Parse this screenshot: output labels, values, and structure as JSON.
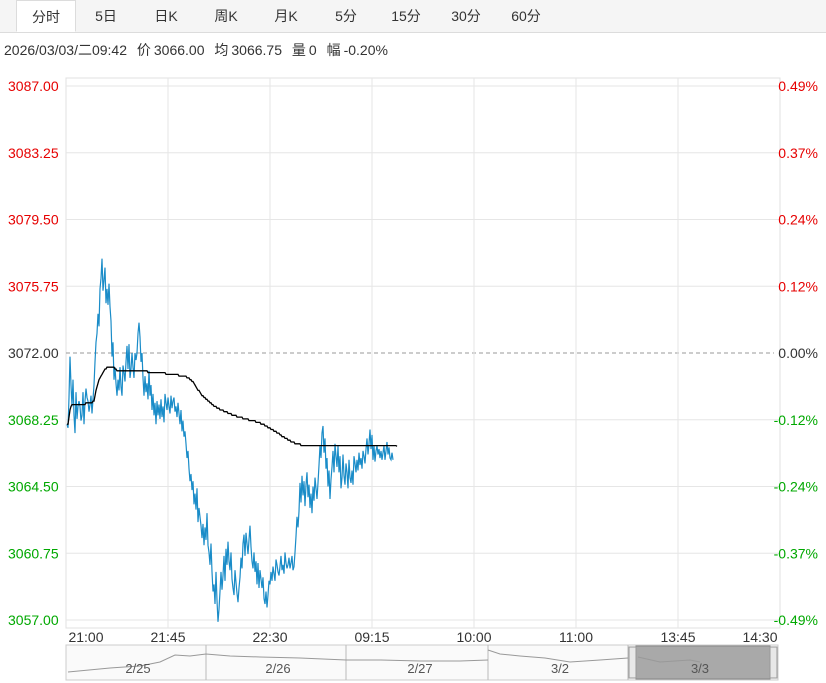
{
  "tabs": [
    "分时",
    "5日",
    "日K",
    "周K",
    "月K",
    "5分",
    "15分",
    "30分",
    "60分"
  ],
  "active_tab": 0,
  "info": {
    "datetime": "2026/03/03/二09:42",
    "price_label": "价",
    "price": "3066.00",
    "avg_label": "均",
    "avg": "3066.75",
    "vol_label": "量",
    "vol": "0",
    "chg_label": "幅",
    "chg": "-0.20%"
  },
  "colors": {
    "up": "#e60000",
    "down": "#00a800",
    "price_line": "#1a8cc8",
    "avg_line": "#000000",
    "grid": "#e6e6e6"
  },
  "chart_data": {
    "type": "line",
    "y_ticks_left": [
      "3087.00",
      "3083.25",
      "3079.50",
      "3075.75",
      "3072.00",
      "3068.25",
      "3064.50",
      "3060.75",
      "3057.00"
    ],
    "y_ticks_right": [
      "0.49%",
      "0.37%",
      "0.24%",
      "0.12%",
      "0.00%",
      "-0.12%",
      "-0.24%",
      "-0.37%",
      "-0.49%"
    ],
    "x_ticks": [
      "21:00",
      "21:45",
      "22:30",
      "09:15",
      "10:00",
      "11:00",
      "13:45",
      "14:30"
    ],
    "ylim": [
      3057.0,
      3087.0
    ],
    "baseline": 3072.0,
    "x": [
      0,
      1,
      2,
      3,
      4,
      5,
      6,
      7,
      8,
      9,
      10,
      11,
      12,
      13,
      14,
      15,
      16,
      17,
      18,
      19,
      20,
      21,
      22,
      23,
      24,
      25,
      26,
      27,
      28,
      29,
      30,
      31,
      32,
      33,
      34,
      35,
      36,
      37,
      38,
      39,
      40,
      41,
      42,
      43,
      44,
      45,
      46,
      47,
      48,
      49,
      50,
      51,
      52,
      53,
      54,
      55,
      56,
      57,
      58,
      59,
      60,
      61,
      62,
      63,
      64,
      65,
      66,
      67,
      68,
      69,
      70,
      71,
      72,
      73,
      74,
      75,
      76,
      77,
      78,
      79,
      80,
      81,
      82,
      83,
      84,
      85,
      86,
      87,
      88,
      89,
      90,
      91,
      92,
      93,
      94,
      95,
      96,
      97,
      98,
      99,
      100,
      101,
      102,
      103,
      104,
      105,
      106,
      107,
      108,
      109,
      110,
      111,
      112,
      113,
      114,
      115,
      116,
      117,
      118,
      119,
      120,
      121,
      122,
      123,
      124,
      125,
      126,
      127,
      128,
      129,
      130,
      131,
      132,
      133,
      134,
      135,
      136,
      137,
      138,
      139,
      140,
      141,
      142,
      143,
      144,
      145,
      146,
      147,
      148,
      149,
      150,
      151,
      152,
      153,
      154,
      155,
      156,
      157,
      158,
      159,
      160,
      161,
      162,
      163,
      164,
      165,
      166,
      167,
      168,
      169,
      170,
      171,
      172,
      173,
      174,
      175,
      176,
      177,
      178,
      179,
      180,
      181,
      182,
      183,
      184,
      185,
      186,
      187,
      188,
      189,
      190,
      191,
      192,
      193,
      194,
      195,
      196,
      197,
      198,
      199,
      200,
      201,
      202,
      203,
      204,
      205,
      206,
      207,
      208,
      209,
      210,
      211,
      212,
      213,
      214,
      215,
      216,
      217,
      218,
      219,
      220,
      221,
      222,
      223,
      224,
      225,
      226,
      227,
      228,
      229,
      230,
      231,
      232,
      233,
      234,
      235,
      236,
      237,
      238,
      239,
      240,
      241,
      242,
      243,
      244,
      245,
      246,
      247,
      248,
      249,
      250,
      251,
      252,
      253,
      254,
      255,
      256,
      257,
      258,
      259,
      260,
      261,
      262,
      263,
      264,
      265,
      266,
      267,
      268,
      269,
      270,
      271,
      272,
      273,
      274,
      275,
      276,
      277,
      278,
      279,
      280,
      281,
      282,
      283,
      284,
      285,
      286,
      287,
      288,
      289,
      290,
      291,
      292,
      293,
      294,
      295,
      296,
      297,
      298,
      299,
      300,
      301,
      302,
      303,
      304,
      305,
      306,
      307,
      308,
      309,
      310,
      311,
      312,
      313,
      314,
      315,
      316,
      317,
      318,
      319,
      320,
      321,
      322,
      323,
      324,
      325,
      326,
      327,
      328,
      329,
      330,
      331,
      332,
      333,
      334
    ],
    "price": [
      3068.0,
      3067.8,
      3069.5,
      3071.8,
      3070.2,
      3069.0,
      3070.5,
      3068.5,
      3067.5,
      3069.8,
      3068.3,
      3069.0,
      3069.3,
      3069.0,
      3068.2,
      3068.5,
      3069.8,
      3068.0,
      3069.3,
      3070.0,
      3069.5,
      3069.3,
      3068.7,
      3069.1,
      3069.6,
      3068.6,
      3069.4,
      3070.2,
      3071.5,
      3072.6,
      3073.1,
      3074.2,
      3073.5,
      3075.6,
      3076.2,
      3077.3,
      3075.5,
      3076.1,
      3076.8,
      3074.8,
      3075.6,
      3074.7,
      3075.9,
      3074.6,
      3073.8,
      3071.8,
      3072.6,
      3070.5,
      3071.2,
      3070.3,
      3069.6,
      3070.5,
      3069.9,
      3071.2,
      3070.1,
      3069.6,
      3071.3,
      3070.9,
      3070.4,
      3071.5,
      3072.4,
      3071.1,
      3072.5,
      3070.6,
      3071.1,
      3072.0,
      3071.2,
      3070.6,
      3072.0,
      3071.6,
      3072.0,
      3073.1,
      3073.7,
      3072.9,
      3071.5,
      3072.0,
      3070.6,
      3069.6,
      3070.7,
      3069.8,
      3070.3,
      3069.4,
      3071.0,
      3069.6,
      3070.2,
      3068.8,
      3069.7,
      3068.5,
      3069.2,
      3068.0,
      3069.3,
      3068.5,
      3069.1,
      3068.3,
      3069.4,
      3068.4,
      3069.0,
      3068.1,
      3069.7,
      3069.2,
      3068.8,
      3069.5,
      3069.0,
      3068.6,
      3069.6,
      3068.9,
      3069.3,
      3069.5,
      3068.7,
      3069.0,
      3068.4,
      3069.2,
      3068.6,
      3068.0,
      3068.8,
      3067.6,
      3068.2,
      3067.3,
      3067.6,
      3066.9,
      3066.1,
      3066.5,
      3065.5,
      3064.8,
      3065.2,
      3064.3,
      3064.8,
      3063.5,
      3064.1,
      3063.2,
      3064.4,
      3062.5,
      3063.3,
      3062.8,
      3062.3,
      3061.6,
      3062.4,
      3061.2,
      3062.2,
      3061.5,
      3063.0,
      3061.2,
      3060.8,
      3060.1,
      3061.3,
      3059.7,
      3058.6,
      3059.0,
      3057.9,
      3059.7,
      3058.1,
      3056.9,
      3057.6,
      3058.6,
      3059.7,
      3058.7,
      3059.5,
      3060.6,
      3059.2,
      3061.0,
      3060.1,
      3061.4,
      3060.3,
      3059.8,
      3060.8,
      3059.3,
      3058.8,
      3058.4,
      3059.8,
      3059.1,
      3058.5,
      3058.0,
      3058.8,
      3059.4,
      3060.5,
      3059.9,
      3061.3,
      3061.8,
      3060.6,
      3061.9,
      3061.3,
      3060.7,
      3061.5,
      3062.3,
      3061.1,
      3060.3,
      3059.9,
      3060.8,
      3059.7,
      3060.3,
      3059.0,
      3060.2,
      3058.8,
      3059.8,
      3059.3,
      3058.8,
      3059.4,
      3058.2,
      3057.9,
      3058.6,
      3057.7,
      3058.4,
      3059.2,
      3059.0,
      3059.7,
      3059.2,
      3060.0,
      3059.6,
      3059.2,
      3060.4,
      3060.1,
      3059.7,
      3059.5,
      3060.0,
      3060.6,
      3059.8,
      3060.1,
      3059.6,
      3060.8,
      3060.2,
      3059.9,
      3060.1,
      3060.5,
      3059.9,
      3060.2,
      3060.6,
      3059.8,
      3060.0,
      3060.8,
      3061.7,
      3062.8,
      3062.2,
      3063.1,
      3064.7,
      3063.6,
      3065.1,
      3064.0,
      3064.8,
      3063.4,
      3064.6,
      3065.3,
      3063.9,
      3064.6,
      3063.3,
      3064.1,
      3063.0,
      3064.5,
      3063.7,
      3065.0,
      3064.4,
      3063.8,
      3064.7,
      3065.7,
      3066.8,
      3066.1,
      3067.5,
      3067.9,
      3066.4,
      3067.2,
      3065.5,
      3066.1,
      3064.5,
      3065.4,
      3063.8,
      3064.9,
      3065.6,
      3066.5,
      3065.3,
      3066.9,
      3066.2,
      3065.6,
      3066.8,
      3065.3,
      3066.2,
      3064.4,
      3065.0,
      3066.3,
      3065.1,
      3064.6,
      3065.8,
      3065.3,
      3064.4,
      3066.0,
      3065.0,
      3064.7,
      3065.4,
      3064.6,
      3066.2,
      3065.8,
      3065.3,
      3066.0,
      3065.4,
      3066.4,
      3065.7,
      3066.1,
      3065.5,
      3066.5,
      3066.2,
      3065.8,
      3066.6,
      3067.2,
      3066.3,
      3066.9,
      3067.7,
      3066.6,
      3067.4,
      3066.0,
      3066.8,
      3065.9,
      3066.5,
      3066.8,
      3066.3,
      3066.6,
      3066.1,
      3066.5,
      3066.0,
      3066.4,
      3066.8,
      3066.0,
      3066.5,
      3067.0,
      3066.3,
      3066.7,
      3066.1,
      3066.0,
      3066.4,
      3066.0
    ],
    "avg": [
      3068.0,
      3068.0,
      3068.4,
      3068.8,
      3069.0,
      3069.1,
      3069.1,
      3069.1,
      3069.1,
      3069.1,
      3069.1,
      3069.1,
      3069.1,
      3069.1,
      3069.1,
      3069.1,
      3069.1,
      3069.1,
      3069.1,
      3069.2,
      3069.2,
      3069.2,
      3069.2,
      3069.2,
      3069.2,
      3069.2,
      3069.3,
      3069.3,
      3069.6,
      3069.9,
      3070.1,
      3070.3,
      3070.5,
      3070.6,
      3070.7,
      3070.8,
      3070.9,
      3071.0,
      3071.1,
      3071.1,
      3071.2,
      3071.2,
      3071.2,
      3071.2,
      3071.2,
      3071.2,
      3071.2,
      3071.2,
      3071.1,
      3071.1,
      3071.0,
      3071.0,
      3071.0,
      3071.0,
      3071.0,
      3071.0,
      3071.0,
      3071.0,
      3071.0,
      3071.0,
      3071.0,
      3071.0,
      3071.0,
      3071.0,
      3071.0,
      3071.0,
      3071.0,
      3071.0,
      3071.0,
      3071.0,
      3071.0,
      3071.0,
      3071.0,
      3071.0,
      3071.0,
      3071.0,
      3071.0,
      3071.0,
      3071.0,
      3071.0,
      3071.0,
      3070.9,
      3070.9,
      3070.9,
      3070.9,
      3070.9,
      3070.9,
      3070.9,
      3070.9,
      3070.9,
      3070.9,
      3070.9,
      3070.9,
      3070.9,
      3070.9,
      3070.9,
      3070.9,
      3070.9,
      3070.9,
      3070.8,
      3070.8,
      3070.8,
      3070.8,
      3070.8,
      3070.8,
      3070.8,
      3070.8,
      3070.8,
      3070.8,
      3070.8,
      3070.8,
      3070.8,
      3070.7,
      3070.7,
      3070.7,
      3070.7,
      3070.7,
      3070.7,
      3070.7,
      3070.7,
      3070.6,
      3070.6,
      3070.6,
      3070.5,
      3070.5,
      3070.4,
      3070.4,
      3070.3,
      3070.2,
      3070.1,
      3070.0,
      3069.9,
      3069.9,
      3069.8,
      3069.7,
      3069.6,
      3069.6,
      3069.5,
      3069.5,
      3069.4,
      3069.4,
      3069.3,
      3069.3,
      3069.2,
      3069.2,
      3069.1,
      3069.1,
      3069.0,
      3069.0,
      3069.0,
      3068.9,
      3068.9,
      3068.9,
      3068.8,
      3068.8,
      3068.8,
      3068.8,
      3068.7,
      3068.7,
      3068.7,
      3068.7,
      3068.6,
      3068.6,
      3068.6,
      3068.6,
      3068.5,
      3068.5,
      3068.5,
      3068.5,
      3068.5,
      3068.4,
      3068.4,
      3068.4,
      3068.4,
      3068.4,
      3068.4,
      3068.3,
      3068.3,
      3068.3,
      3068.3,
      3068.3,
      3068.3,
      3068.2,
      3068.2,
      3068.2,
      3068.2,
      3068.2,
      3068.2,
      3068.2,
      3068.1,
      3068.1,
      3068.1,
      3068.1,
      3068.1,
      3068.0,
      3068.0,
      3068.0,
      3068.0,
      3067.9,
      3067.9,
      3067.9,
      3067.8,
      3067.8,
      3067.8,
      3067.7,
      3067.7,
      3067.7,
      3067.6,
      3067.6,
      3067.6,
      3067.5,
      3067.5,
      3067.5,
      3067.4,
      3067.4,
      3067.3,
      3067.3,
      3067.3,
      3067.2,
      3067.2,
      3067.2,
      3067.1,
      3067.1,
      3067.1,
      3067.0,
      3067.0,
      3067.0,
      3067.0,
      3066.9,
      3066.9,
      3066.9,
      3066.9,
      3066.9,
      3066.9,
      3066.8,
      3066.8,
      3066.8,
      3066.8,
      3066.8,
      3066.8,
      3066.8,
      3066.8,
      3066.8,
      3066.8,
      3066.8,
      3066.8,
      3066.8,
      3066.8,
      3066.8,
      3066.8,
      3066.8,
      3066.8,
      3066.8,
      3066.8,
      3066.8,
      3066.8,
      3066.8,
      3066.8,
      3066.8,
      3066.8,
      3066.8,
      3066.8,
      3066.8,
      3066.8,
      3066.8,
      3066.8,
      3066.8,
      3066.8,
      3066.8,
      3066.8,
      3066.8,
      3066.8,
      3066.8,
      3066.8,
      3066.8,
      3066.8,
      3066.8,
      3066.8,
      3066.8,
      3066.8,
      3066.8,
      3066.8,
      3066.8,
      3066.8,
      3066.8,
      3066.8,
      3066.8,
      3066.8,
      3066.8,
      3066.8,
      3066.8,
      3066.8,
      3066.8,
      3066.8,
      3066.8,
      3066.8,
      3066.8,
      3066.8,
      3066.8,
      3066.8,
      3066.8,
      3066.8,
      3066.8,
      3066.8,
      3066.8,
      3066.8,
      3066.8,
      3066.8,
      3066.8,
      3066.8,
      3066.8,
      3066.8,
      3066.8,
      3066.8,
      3066.8,
      3066.8,
      3066.8,
      3066.8,
      3066.8,
      3066.8,
      3066.8,
      3066.8,
      3066.8,
      3066.8,
      3066.8,
      3066.8,
      3066.8,
      3066.8,
      3066.8,
      3066.8,
      3066.75
    ],
    "navigator_labels": [
      "2/25",
      "2/26",
      "2/27",
      "3/2",
      "3/3"
    ]
  }
}
